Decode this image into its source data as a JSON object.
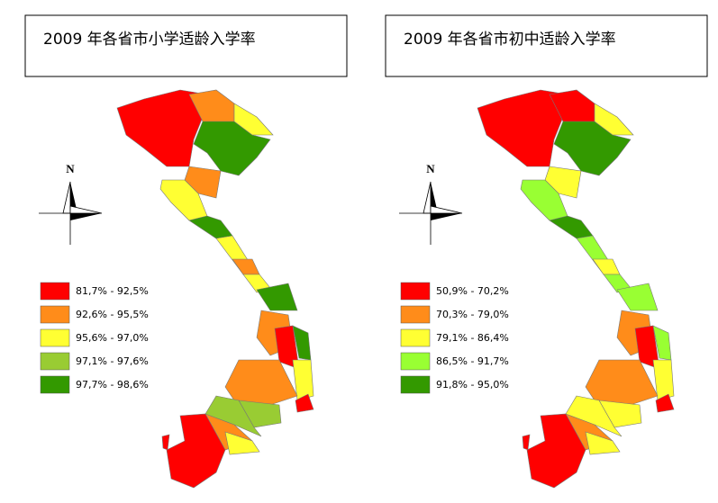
{
  "maps": [
    {
      "title": "2009 年各省市小学适龄入学率",
      "north": "N",
      "legend": [
        {
          "label": "81,7% - 92,5%",
          "color": "#ff0000"
        },
        {
          "label": "92,6% - 95,5%",
          "color": "#ff8c1a"
        },
        {
          "label": "95,6% - 97,0%",
          "color": "#ffff33"
        },
        {
          "label": "97,1% - 97,6%",
          "color": "#99cc33"
        },
        {
          "label": "97,7% - 98,6%",
          "color": "#339900"
        }
      ]
    },
    {
      "title": "2009 年各省市初中适龄入学率",
      "north": "N",
      "legend": [
        {
          "label": "50,9% - 70,2%",
          "color": "#ff0000"
        },
        {
          "label": "70,3% - 79,0%",
          "color": "#ff8c1a"
        },
        {
          "label": "79,1% - 86,4%",
          "color": "#ffff33"
        },
        {
          "label": "86,5% - 91,7%",
          "color": "#99ff33"
        },
        {
          "label": "91,8% - 95,0%",
          "color": "#339900"
        }
      ]
    }
  ]
}
